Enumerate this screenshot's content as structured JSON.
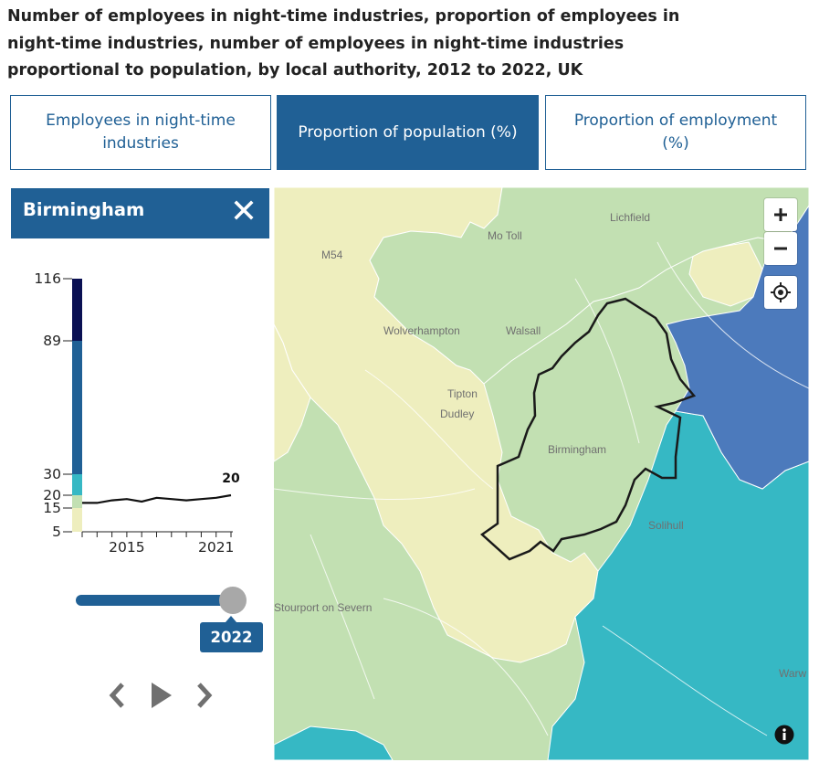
{
  "title": "Number of employees in night-time industries, proportion of employees in night-time industries, number of employees in night-time industries proportional to population, by local authority, 2012 to 2022, UK",
  "tabs": [
    {
      "label": "Employees in night-time industries",
      "active": false
    },
    {
      "label": "Proportion of population (%)",
      "active": true
    },
    {
      "label": "Proportion of employment (%)",
      "active": false
    }
  ],
  "panel": {
    "area_name": "Birmingham",
    "close_icon": "close-icon"
  },
  "chart_data": {
    "type": "line",
    "title": "",
    "xlabel": "",
    "ylabel": "",
    "x": [
      2012,
      2013,
      2014,
      2015,
      2016,
      2017,
      2018,
      2019,
      2020,
      2021,
      2022
    ],
    "series": [
      {
        "values": [
          17,
          17,
          18,
          18.5,
          17.5,
          19,
          18.5,
          18,
          18.5,
          19,
          20
        ]
      }
    ],
    "x_ticks": [
      "2015",
      "2021"
    ],
    "y_ticks": [
      "5",
      "15",
      "20",
      "30",
      "89",
      "116"
    ],
    "y_breaks": [
      5,
      15,
      20,
      30,
      89,
      116
    ],
    "legend_bands": [
      {
        "from": 5,
        "to": 15,
        "color": "#eeeebe"
      },
      {
        "from": 15,
        "to": 20,
        "color": "#c2e0b2"
      },
      {
        "from": 20,
        "to": 30,
        "color": "#36b8c4"
      },
      {
        "from": 30,
        "to": 89,
        "color": "#206095"
      },
      {
        "from": 89,
        "to": 116,
        "color": "#0a1053"
      }
    ],
    "end_label": "20",
    "grid": false
  },
  "slider": {
    "year": "2022",
    "value": 2022,
    "min": 2012,
    "max": 2022
  },
  "controls": {
    "prev_icon": "chevron-left-icon",
    "play_icon": "play-icon",
    "next_icon": "chevron-right-icon"
  },
  "map": {
    "labels": [
      "Lichfield",
      "Mo Toll",
      "M54",
      "Wolverhampton",
      "Walsall",
      "Tipton",
      "Dudley",
      "Birmingham",
      "Solihull",
      "Stourport on Severn",
      "Warw"
    ],
    "zoom_in": "+",
    "zoom_out": "−",
    "locate_icon": "locate-icon",
    "info_icon": "info-icon",
    "colors": {
      "band_low": "#eeeebe",
      "band_mid": "#c2e0b2",
      "band_high": "#36b8c4",
      "band_top": "#4c7abc",
      "outline": "#1a1a1a"
    }
  }
}
